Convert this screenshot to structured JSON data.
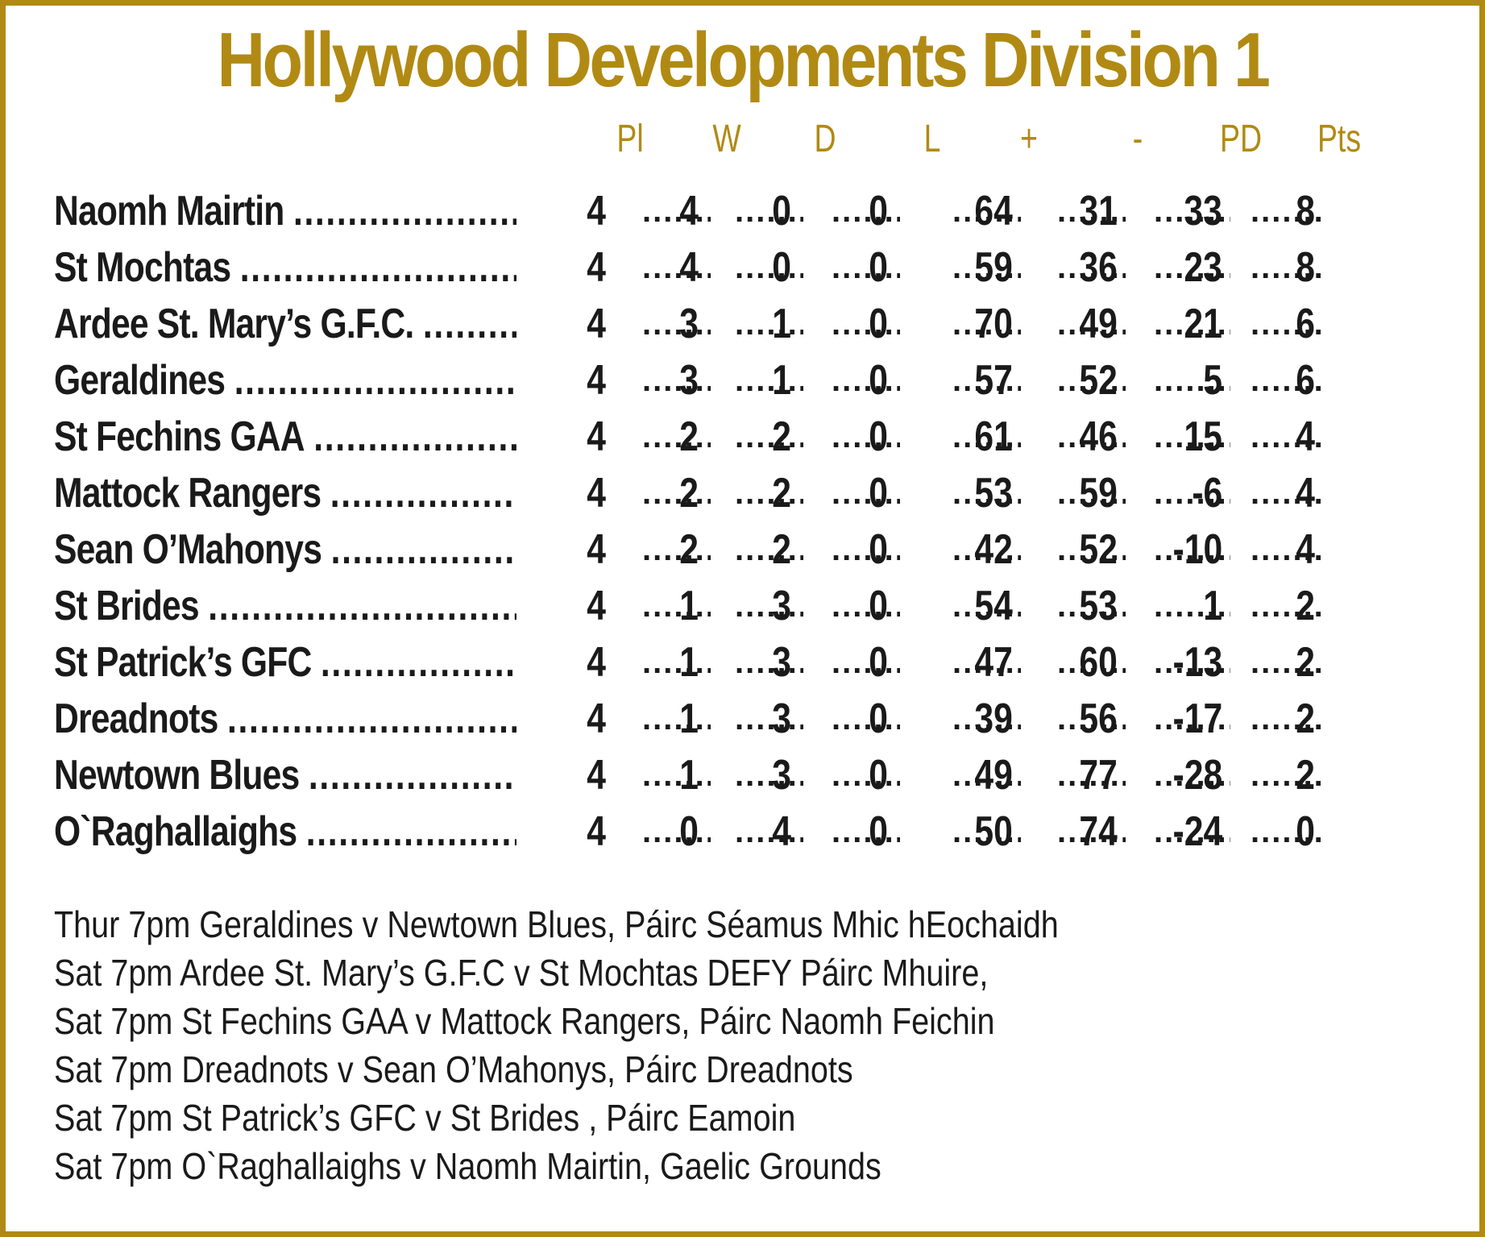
{
  "title": "Hollywood Developments Division 1",
  "colors": {
    "accent": "#b18a14",
    "text": "#1a1a1a"
  },
  "table": {
    "headers": [
      "Pl",
      "W",
      "D",
      "L",
      "+",
      "-",
      "PD",
      "Pts"
    ],
    "rows": [
      {
        "team": "Naomh Mairtin",
        "pl": "4",
        "w": "4",
        "d": "0",
        "l": "0",
        "for": "64",
        "against": "31",
        "pd": "33",
        "pts": "8"
      },
      {
        "team": "St Mochtas",
        "pl": "4",
        "w": "4",
        "d": "0",
        "l": "0",
        "for": "59",
        "against": "36",
        "pd": "23",
        "pts": "8"
      },
      {
        "team": "Ardee St. Mary’s G.F.C.",
        "pl": "4",
        "w": "3",
        "d": "1",
        "l": "0",
        "for": "70",
        "against": "49",
        "pd": "21",
        "pts": "6"
      },
      {
        "team": "Geraldines",
        "pl": "4",
        "w": "3",
        "d": "1",
        "l": "0",
        "for": "57",
        "against": "52",
        "pd": "5",
        "pts": "6"
      },
      {
        "team": "St Fechins GAA",
        "pl": "4",
        "w": "2",
        "d": "2",
        "l": "0",
        "for": "61",
        "against": "46",
        "pd": "15",
        "pts": "4"
      },
      {
        "team": "Mattock Rangers",
        "pl": "4",
        "w": "2",
        "d": "2",
        "l": "0",
        "for": "53",
        "against": "59",
        "pd": "-6",
        "pts": "4"
      },
      {
        "team": "Sean O’Mahonys",
        "pl": "4",
        "w": "2",
        "d": "2",
        "l": "0",
        "for": "42",
        "against": "52",
        "pd": "-10",
        "pts": "4"
      },
      {
        "team": "St Brides",
        "pl": "4",
        "w": "1",
        "d": "3",
        "l": "0",
        "for": "54",
        "against": "53",
        "pd": "1",
        "pts": "2"
      },
      {
        "team": "St Patrick’s GFC",
        "pl": "4",
        "w": "1",
        "d": "3",
        "l": "0",
        "for": "47",
        "against": "60",
        "pd": "-13",
        "pts": "2"
      },
      {
        "team": "Dreadnots",
        "pl": "4",
        "w": "1",
        "d": "3",
        "l": "0",
        "for": "39",
        "against": "56",
        "pd": "-17",
        "pts": "2"
      },
      {
        "team": "Newtown Blues",
        "pl": "4",
        "w": "1",
        "d": "3",
        "l": "0",
        "for": "49",
        "against": "77",
        "pd": "-28",
        "pts": "2"
      },
      {
        "team": "O`Raghallaighs",
        "pl": "4",
        "w": "0",
        "d": "4",
        "l": "0",
        "for": "50",
        "against": "74",
        "pd": "-24",
        "pts": "0"
      }
    ]
  },
  "fixtures": [
    "Thur 7pm Geraldines v Newtown Blues, Páirc Séamus Mhic hEochaidh",
    "Sat 7pm Ardee St. Mary’s G.F.C v St Mochtas DEFY Páirc Mhuire,",
    "Sat 7pm St Fechins GAA v Mattock Rangers, Páirc Naomh Feichin",
    "Sat 7pm Dreadnots v Sean O’Mahonys, Páirc Dreadnots",
    "Sat 7pm St Patrick’s GFC v St Brides , Páirc Eamoin",
    "Sat 7pm O`Raghallaighs v Naomh Mairtin, Gaelic Grounds"
  ]
}
